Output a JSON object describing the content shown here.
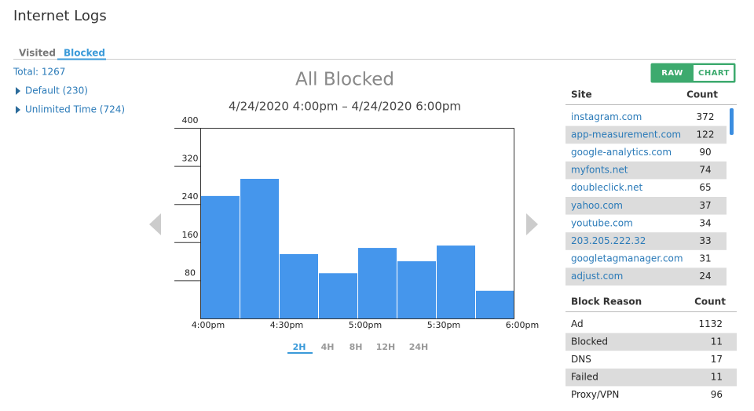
{
  "header": {
    "title": "Internet Logs"
  },
  "tabs": [
    "Visited",
    "Blocked"
  ],
  "sidebar": {
    "total": "Total: 1267",
    "groups": [
      "Default (230)",
      "Unlimited Time (724)"
    ]
  },
  "chart_data": {
    "type": "bar",
    "title": "All Blocked",
    "subtitle": "4/24/2020 4:00pm – 4/24/2020 6:00pm",
    "categories": [
      null,
      null,
      null,
      null,
      null,
      null,
      null,
      null
    ],
    "values": [
      257,
      293,
      135,
      95,
      148,
      120,
      153,
      58
    ],
    "color": "#4596ec",
    "ylim": [
      0,
      400
    ],
    "yticks": [
      80,
      160,
      240,
      320,
      400
    ],
    "xtick_labels": [
      "4:00pm",
      "4:30pm",
      "5:00pm",
      "5:30pm",
      "6:00pm"
    ]
  },
  "range_buttons": [
    "2H",
    "4H",
    "8H",
    "12H",
    "24H"
  ],
  "toggle": [
    "RAW",
    "CHART"
  ],
  "sites_table": {
    "headers": [
      "Site",
      "Count"
    ],
    "rows": [
      [
        "instagram.com",
        372
      ],
      [
        "app-measurement.com",
        122
      ],
      [
        "google-analytics.com",
        90
      ],
      [
        "myfonts.net",
        74
      ],
      [
        "doubleclick.net",
        65
      ],
      [
        "yahoo.com",
        37
      ],
      [
        "youtube.com",
        34
      ],
      [
        "203.205.222.32",
        33
      ],
      [
        "googletagmanager.com",
        31
      ],
      [
        "adjust.com",
        24
      ]
    ]
  },
  "reasons_table": {
    "headers": [
      "Block Reason",
      "Count"
    ],
    "rows": [
      [
        "Ad",
        1132
      ],
      [
        "Blocked",
        11
      ],
      [
        "DNS",
        17
      ],
      [
        "Failed",
        11
      ],
      [
        "Proxy/VPN",
        96
      ]
    ]
  }
}
